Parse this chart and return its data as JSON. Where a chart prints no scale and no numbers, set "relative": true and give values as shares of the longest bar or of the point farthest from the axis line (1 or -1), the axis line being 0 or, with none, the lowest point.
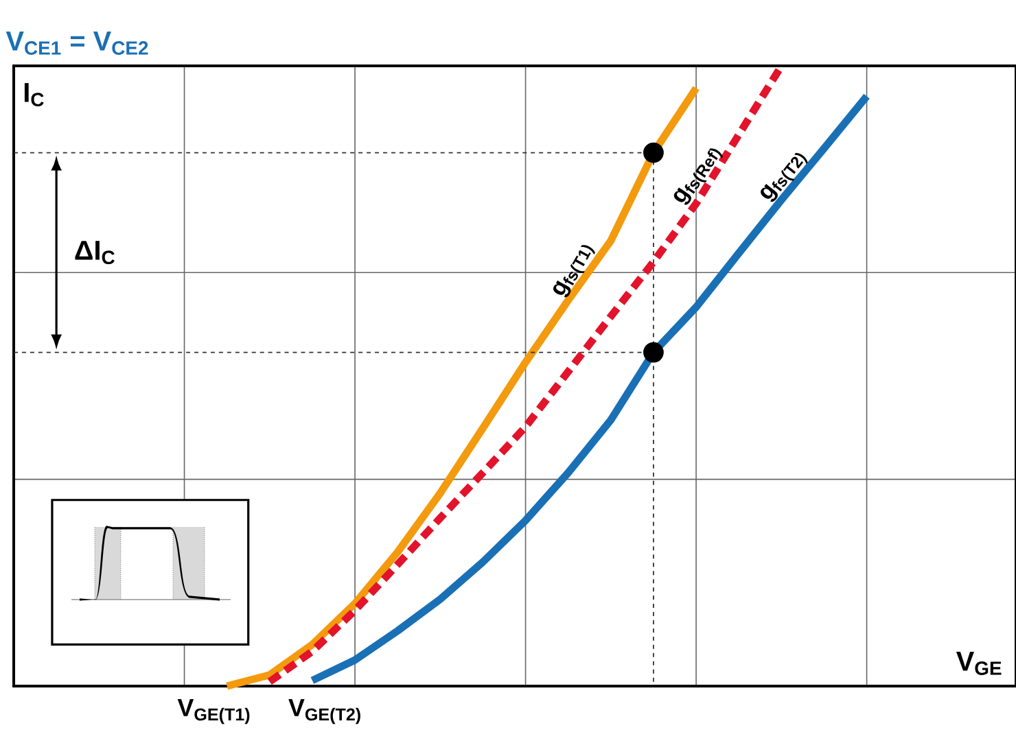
{
  "chart_data": {
    "type": "line",
    "title": "V$_{CE1}$ = V$_{CE2}$",
    "xlabel": "V$_{GE}$",
    "ylabel": "I$_{C}$",
    "relative": true,
    "grid": true,
    "categories": [
      null,
      null,
      null,
      null,
      null,
      null,
      null,
      null,
      null,
      null,
      null,
      null,
      null,
      null,
      null,
      null,
      null,
      null,
      null,
      null,
      null,
      null,
      null,
      null
    ],
    "series": [
      {
        "name": "g$_{fs(T1)}$",
        "color": "#f39a0e",
        "line_style": "solid",
        "marker": "none",
        "values": [
          null,
          null,
          null,
          null,
          null,
          0,
          0.018,
          0.067,
          0.133,
          0.216,
          0.311,
          0.416,
          0.522,
          0.622,
          0.718,
          0.86,
          0.964,
          null,
          null,
          null,
          null,
          null,
          null,
          null
        ]
      },
      {
        "name": "g$_{fs(Ref)}$",
        "color": "#e3132b",
        "line_style": "dashed",
        "marker": "none",
        "values": [
          null,
          null,
          null,
          null,
          null,
          null,
          0.007,
          0.056,
          0.122,
          0.196,
          0.271,
          0.344,
          0.418,
          0.507,
          0.596,
          0.684,
          0.778,
          0.889,
          1,
          null,
          null,
          null,
          null,
          null
        ]
      },
      {
        "name": "g$_{fs(T2)}$",
        "color": "#1a70b5",
        "line_style": "solid",
        "marker": "none",
        "values": [
          null,
          null,
          null,
          null,
          null,
          null,
          null,
          0.009,
          0.042,
          0.089,
          0.14,
          0.2,
          0.267,
          0.344,
          0.429,
          0.538,
          0.611,
          0.698,
          0.784,
          0.867,
          0.951,
          null,
          null,
          null
        ]
      },
      {
        "color": "#333333",
        "line_style": "dashed",
        "marker": "none",
        "values": [
          0.86,
          0.86,
          0.86,
          0.86,
          0.86,
          0.86,
          0.86,
          0.86,
          0.86,
          0.86,
          0.86,
          0.86,
          0.86,
          0.86,
          0.86,
          0.86,
          null,
          null,
          null,
          null,
          null,
          null,
          null,
          null
        ]
      },
      {
        "color": "#333333",
        "line_style": "dashed",
        "marker": "none",
        "values": [
          0.538,
          0.538,
          0.538,
          0.538,
          0.538,
          0.538,
          0.538,
          0.538,
          0.538,
          0.538,
          0.538,
          0.538,
          0.538,
          0.538,
          0.538,
          0.538,
          null,
          null,
          null,
          null,
          null,
          null,
          null,
          null
        ]
      },
      {
        "color": "#000000",
        "marker": "circle",
        "values": [
          null,
          null,
          null,
          null,
          null,
          null,
          null,
          null,
          null,
          null,
          null,
          null,
          null,
          null,
          null,
          0.86,
          null,
          null,
          null,
          null,
          null,
          null,
          null,
          null
        ]
      },
      {
        "color": "#000000",
        "marker": "circle",
        "values": [
          null,
          null,
          null,
          null,
          null,
          null,
          null,
          null,
          null,
          null,
          null,
          null,
          null,
          null,
          null,
          0.538,
          null,
          null,
          null,
          null,
          null,
          null,
          null,
          null
        ]
      }
    ],
    "annotations": [
      "ΔI$_{C}$",
      "V$_{GE(T1)}$",
      "V$_{GE(T2)}$"
    ]
  }
}
